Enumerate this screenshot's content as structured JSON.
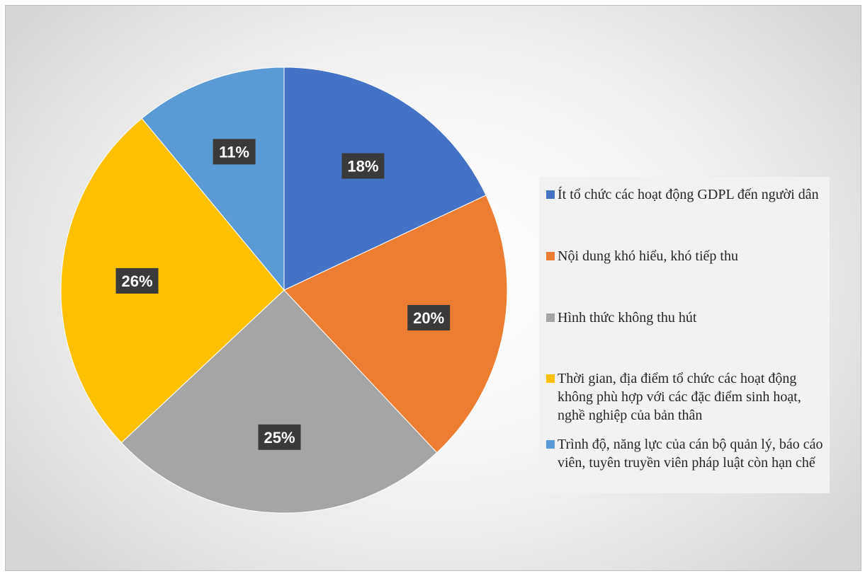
{
  "chart_data": {
    "type": "pie",
    "start_angle": "12 o'clock, clockwise",
    "slices": [
      {
        "label": "Ít tổ chức các hoạt động GDPL đến người dân",
        "value": 18,
        "display": "18%",
        "color": "#4472c4"
      },
      {
        "label": "Nội dung khó hiểu, khó tiếp thu",
        "value": 20,
        "display": "20%",
        "color": "#ed7d31"
      },
      {
        "label": "Hình thức không thu hút",
        "value": 25,
        "display": "25%",
        "color": "#a5a5a5"
      },
      {
        "label": "Thời gian, địa điểm tổ chức các hoạt động không phù hợp với các đặc điểm sinh hoạt, nghề nghiệp của bản thân",
        "value": 26,
        "display": "26%",
        "color": "#ffc000"
      },
      {
        "label": "Trình độ, năng lực của cán bộ quản lý, báo cáo viên, tuyên truyền viên pháp luật còn hạn chế",
        "value": 11,
        "display": "11%",
        "color": "#5b9bd5"
      }
    ],
    "legend_position": "right",
    "data_label_style": "white bold on dark box"
  }
}
